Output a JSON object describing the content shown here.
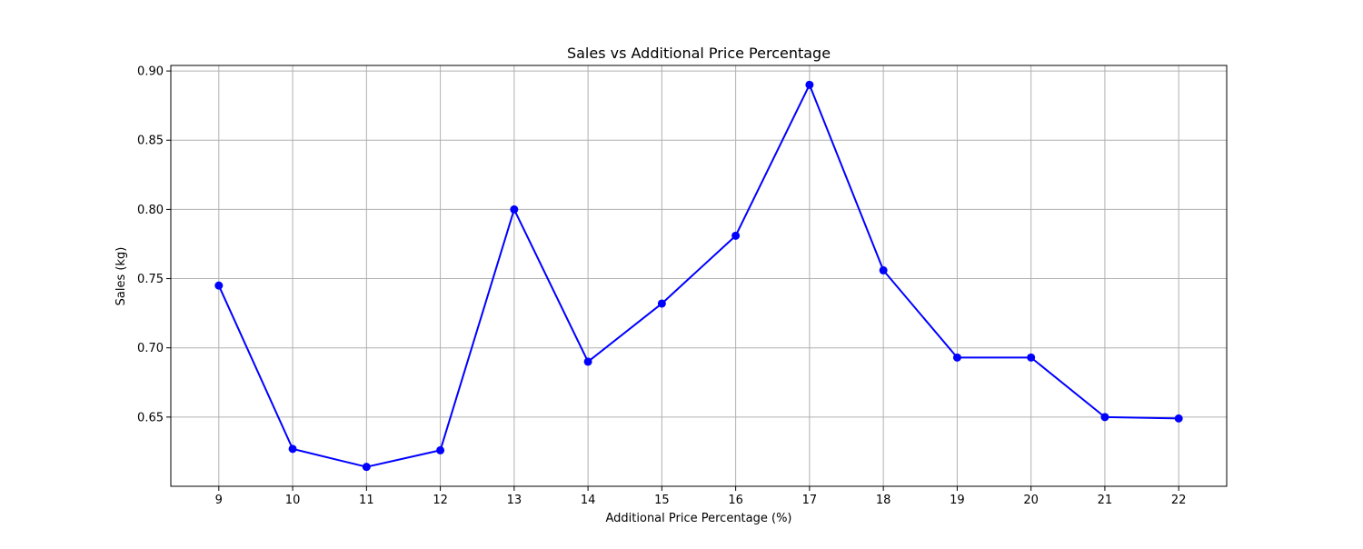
{
  "chart_data": {
    "type": "line",
    "title": "Sales vs Additional Price Percentage",
    "xlabel": "Additional Price Percentage (%)",
    "ylabel": "Sales (kg)",
    "x": [
      9,
      10,
      11,
      12,
      13,
      14,
      15,
      16,
      17,
      18,
      19,
      20,
      21,
      22
    ],
    "series": [
      {
        "values": [
          0.745,
          0.627,
          0.614,
          0.626,
          0.8,
          0.69,
          0.732,
          0.781,
          0.89,
          0.756,
          0.693,
          0.693,
          0.65,
          0.649
        ]
      }
    ],
    "xlim": [
      8.35,
      22.65
    ],
    "ylim": [
      0.6,
      0.904
    ],
    "yticks": [
      0.65,
      0.7,
      0.75,
      0.8,
      0.85,
      0.9
    ],
    "ytick_labels": [
      "0.65",
      "0.70",
      "0.75",
      "0.80",
      "0.85",
      "0.90"
    ],
    "grid": true,
    "line_color": "#0000ff",
    "marker_color": "#0000ff",
    "grid_color": "#b0b0b0"
  }
}
